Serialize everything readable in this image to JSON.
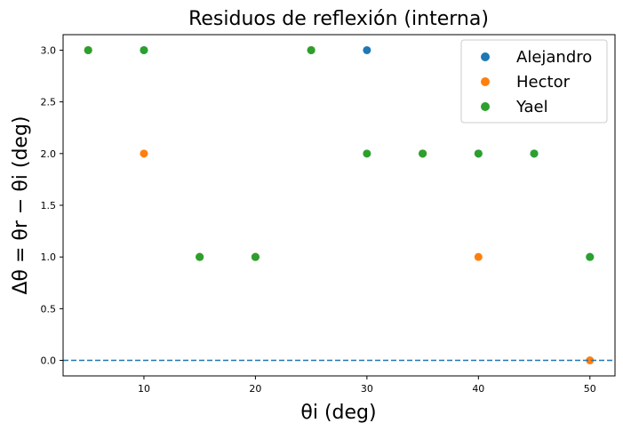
{
  "chart_data": {
    "type": "scatter",
    "title": "Residuos de reflexión (interna)",
    "xlabel": "θi (deg)",
    "ylabel": "Δθ = θr − θi (deg)",
    "xlim": [
      2.75,
      52.25
    ],
    "ylim": [
      -0.15,
      3.15
    ],
    "xticks": [
      10,
      20,
      30,
      40,
      50
    ],
    "yticks": [
      0.0,
      0.5,
      1.0,
      1.5,
      2.0,
      2.5,
      3.0
    ],
    "ytick_labels": [
      "0.0",
      "0.5",
      "1.0",
      "1.5",
      "2.0",
      "2.5",
      "3.0"
    ],
    "grid": false,
    "legend_position": "top-right",
    "reference_line": {
      "y": 0,
      "style": "dashed",
      "color": "#1f77b4"
    },
    "series": [
      {
        "name": "Alejandro",
        "color": "#1f77b4",
        "x": [
          5,
          10,
          15,
          20,
          25,
          30,
          35,
          40,
          45,
          50
        ],
        "y": [
          3,
          3,
          1,
          1,
          3,
          3,
          2,
          2,
          2,
          1
        ]
      },
      {
        "name": "Hector",
        "color": "#ff7f0e",
        "x": [
          5,
          10,
          15,
          20,
          25,
          35,
          40,
          50
        ],
        "y": [
          3,
          2,
          1,
          1,
          3,
          2,
          1,
          0
        ]
      },
      {
        "name": "Yael",
        "color": "#2ca02c",
        "x": [
          5,
          10,
          15,
          20,
          25,
          30,
          35,
          40,
          45,
          50
        ],
        "y": [
          3,
          3,
          1,
          1,
          3,
          2,
          2,
          2,
          2,
          1
        ]
      }
    ]
  }
}
